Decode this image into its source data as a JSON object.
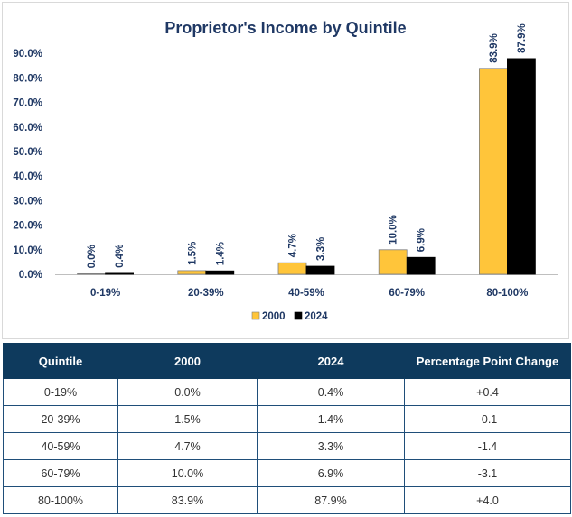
{
  "colors": {
    "series_2000": "#ffc53a",
    "series_2024": "#000000",
    "label_navy": "#1f3864",
    "header_bg": "#0e3a5d"
  },
  "chart_data": {
    "type": "bar",
    "title": "Proprietor's Income by Quintile",
    "categories": [
      "0-19%",
      "20-39%",
      "40-59%",
      "60-79%",
      "80-100%"
    ],
    "series": [
      {
        "name": "2000",
        "values": [
          0.0,
          1.5,
          4.7,
          10.0,
          83.9
        ],
        "labels": [
          "0.0%",
          "1.5%",
          "4.7%",
          "10.0%",
          "83.9%"
        ]
      },
      {
        "name": "2024",
        "values": [
          0.4,
          1.4,
          3.3,
          6.9,
          87.9
        ],
        "labels": [
          "0.4%",
          "1.4%",
          "3.3%",
          "6.9%",
          "87.9%"
        ]
      }
    ],
    "ylim": [
      0,
      90
    ],
    "yticks": [
      0,
      10,
      20,
      30,
      40,
      50,
      60,
      70,
      80,
      90
    ],
    "ytick_labels": [
      "0.0%",
      "10.0%",
      "20.0%",
      "30.0%",
      "40.0%",
      "50.0%",
      "60.0%",
      "70.0%",
      "80.0%",
      "90.0%"
    ],
    "grid": false,
    "legend": "bottom"
  },
  "table": {
    "headers": [
      "Quintile",
      "2000",
      "2024",
      "Percentage Point Change"
    ],
    "rows": [
      [
        "0-19%",
        "0.0%",
        "0.4%",
        "+0.4"
      ],
      [
        "20-39%",
        "1.5%",
        "1.4%",
        "-0.1"
      ],
      [
        "40-59%",
        "4.7%",
        "3.3%",
        "-1.4"
      ],
      [
        "60-79%",
        "10.0%",
        "6.9%",
        "-3.1"
      ],
      [
        "80-100%",
        "83.9%",
        "87.9%",
        "+4.0"
      ]
    ]
  }
}
